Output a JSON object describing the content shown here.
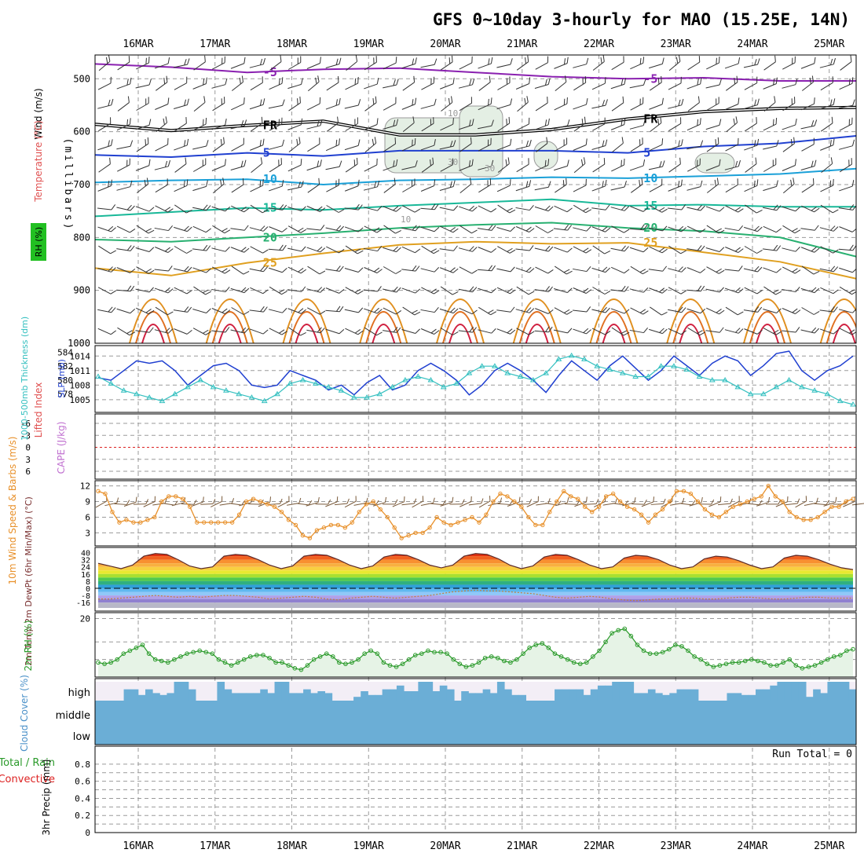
{
  "title": "GFS 0~10day 3-hourly for MAO (15.25E, 14N)",
  "dates": [
    "16MAR",
    "17MAR",
    "18MAR",
    "19MAR",
    "20MAR",
    "21MAR",
    "22MAR",
    "23MAR",
    "24MAR",
    "25MAR"
  ],
  "colors": {
    "frame": "#000000",
    "grid": "#9a9a9a",
    "slp": "#1f3fd0",
    "thickness": "#35c0c0",
    "wind": "#e8902a",
    "barb": "#7a5a3a",
    "rh2m_line": "#2a9a2a",
    "rh2m_fill": "#e6f3e6",
    "cloud": "#6baed6",
    "cloud_bg": "#f3eef6",
    "li_zero": "#dd2222"
  },
  "chart_data": [
    {
      "panel": "upper_air",
      "type": "contour",
      "ylabel": "(millibars)",
      "side_labels": [
        "Wind (m/s)",
        "Temperature (°C)",
        "RH (%)"
      ],
      "y_ticks": [
        500,
        600,
        700,
        800,
        900,
        1000
      ],
      "ylim": [
        1000,
        455
      ],
      "temperature_isotherms": [
        {
          "label": "-5",
          "color": "#8a20b0",
          "p_mb": [
            472,
            478,
            488,
            482,
            480,
            488,
            496,
            500,
            498,
            504,
            504
          ]
        },
        {
          "label": "FR",
          "color": "#222222",
          "p_mb": [
            586,
            598,
            588,
            580,
            606,
            606,
            596,
            576,
            562,
            556,
            554
          ]
        },
        {
          "label": "5",
          "color": "#2040d0",
          "p_mb": [
            644,
            648,
            640,
            646,
            636,
            636,
            636,
            640,
            628,
            622,
            608
          ]
        },
        {
          "label": "10",
          "color": "#1aa0d8",
          "p_mb": [
            696,
            692,
            690,
            700,
            692,
            690,
            686,
            688,
            684,
            680,
            670
          ]
        },
        {
          "label": "15",
          "color": "#18b898",
          "p_mb": [
            760,
            752,
            744,
            748,
            740,
            734,
            728,
            740,
            738,
            742,
            742
          ]
        },
        {
          "label": "20",
          "color": "#28b070",
          "p_mb": [
            804,
            808,
            800,
            792,
            782,
            776,
            772,
            782,
            788,
            800,
            836
          ]
        },
        {
          "label": "25",
          "color": "#e0a020",
          "p_mb": [
            858,
            872,
            848,
            830,
            814,
            808,
            812,
            810,
            828,
            846,
            878
          ]
        }
      ],
      "rh_contours": [
        "10",
        "30",
        "30",
        "10"
      ]
    },
    {
      "panel": "slp_thickness",
      "type": "line",
      "y_left_label": "1000-500mb Thickness (dm)",
      "y_right_label": "SLP (mb)",
      "y_left_ticks": [
        578,
        580,
        582,
        584
      ],
      "y_right_ticks": [
        1005,
        1008,
        1011,
        1014
      ],
      "series": [
        {
          "name": "SLP (mb)",
          "axis": "right",
          "values": [
            1009.5,
            1009,
            1011,
            1013,
            1012.5,
            1013,
            1011,
            1008,
            1010,
            1012,
            1012.5,
            1011,
            1008,
            1007.5,
            1008,
            1011,
            1010,
            1009,
            1007,
            1008,
            1006,
            1008.5,
            1010,
            1007,
            1008,
            1011,
            1012.5,
            1011,
            1009,
            1006,
            1008,
            1011,
            1012.5,
            1011,
            1009,
            1006.5,
            1010,
            1013,
            1011,
            1009,
            1012,
            1014,
            1011.5,
            1009,
            1011,
            1014,
            1012,
            1010,
            1012.5,
            1014,
            1013,
            1010,
            1012,
            1014.5,
            1015,
            1011,
            1009,
            1011,
            1012,
            1014
          ]
        },
        {
          "name": "Thickness (dm)",
          "axis": "left",
          "values": [
            580.5,
            579.5,
            578.5,
            578,
            577.5,
            577,
            578,
            579,
            580,
            579,
            578.5,
            578,
            577.5,
            577,
            578,
            579.5,
            580,
            579.5,
            579,
            578.5,
            577.5,
            577.5,
            578,
            579,
            580,
            580.5,
            580,
            579,
            579.5,
            581,
            582,
            582,
            581,
            580.5,
            580,
            581,
            583,
            583.5,
            583,
            582,
            581.5,
            581,
            580.5,
            580.5,
            582,
            582,
            581.5,
            580.5,
            580,
            580,
            579,
            578,
            578,
            579,
            580,
            579,
            578.5,
            578,
            577,
            576.5
          ]
        }
      ]
    },
    {
      "panel": "lifted_index_cape",
      "type": "line",
      "ylabel_left": "Lifted Index",
      "ylabel_right": "CAPE (J/kg)",
      "y_ticks": [
        "-6",
        "-3",
        "0",
        "3",
        "6"
      ],
      "ylim": [
        -6,
        6
      ],
      "zero_line": 0
    },
    {
      "panel": "wind_10m",
      "type": "line",
      "ylabel": "10m Wind Speed & Barbs (m/s)",
      "y_ticks": [
        3,
        6,
        9,
        12
      ],
      "ylim": [
        0.5,
        13
      ],
      "values": [
        11,
        10.5,
        7,
        5,
        5.5,
        5,
        5,
        5.5,
        6,
        9,
        10,
        10,
        9.5,
        8,
        5,
        5,
        5,
        5,
        5,
        5,
        6.5,
        9,
        9.5,
        9,
        8.5,
        8,
        7,
        5.5,
        4.5,
        2.5,
        2,
        3.5,
        4,
        4.5,
        4.5,
        4,
        5,
        7,
        8.5,
        9,
        7.5,
        6,
        4,
        2,
        2.5,
        3,
        3,
        4,
        6,
        5,
        4.5,
        5,
        5.5,
        6,
        5,
        6.5,
        9,
        10.5,
        10,
        9,
        8,
        6,
        4.5,
        4.5,
        7,
        9,
        11,
        10,
        9.5,
        8,
        7,
        8,
        10,
        10.5,
        9,
        8,
        7.5,
        6.5,
        5,
        6.5,
        7.5,
        9,
        11,
        11,
        10.5,
        9,
        7.5,
        6.5,
        6,
        7,
        8,
        8.5,
        9,
        9.5,
        10,
        12,
        10,
        9,
        7,
        6,
        5.5,
        5.5,
        6,
        7,
        8,
        8,
        9,
        9.5
      ]
    },
    {
      "panel": "temp_2m",
      "type": "area",
      "ylabel": "2m Temp 2m DewPt (6hr Min/Max) (°C)",
      "y_ticks": [
        "40",
        "32",
        "24",
        "16",
        "8",
        "0",
        "-8",
        "-16"
      ],
      "ylim": [
        -22,
        44
      ],
      "temperature_c": [
        28,
        25,
        22,
        26,
        36,
        39,
        38,
        32,
        25,
        22,
        24,
        36,
        38,
        37,
        32,
        26,
        22,
        25,
        36,
        38,
        37,
        32,
        26,
        22,
        25,
        35,
        38,
        37,
        32,
        26,
        23,
        26,
        36,
        39,
        38,
        33,
        26,
        22,
        25,
        35,
        38,
        37,
        32,
        26,
        22,
        24,
        34,
        37,
        36,
        32,
        26,
        22,
        24,
        33,
        36,
        35,
        31,
        26,
        22,
        24,
        34,
        37,
        36,
        32,
        27,
        23,
        21
      ],
      "dewpoint_c": [
        -12,
        -12,
        -11,
        -10,
        -9,
        -8,
        -9,
        -10,
        -9,
        -10,
        -9,
        -8,
        -8,
        -9,
        -10,
        -12,
        -11,
        -10,
        -9,
        -10,
        -12,
        -13,
        -11,
        -10,
        -9,
        -10,
        -11,
        -10,
        -9,
        -8,
        -6,
        -4,
        -3,
        -2,
        -3,
        -3,
        -4,
        -5,
        -6,
        -8,
        -10,
        -11,
        -10,
        -9,
        -10,
        -12,
        -13,
        -14,
        -13,
        -12,
        -12,
        -11,
        -11,
        -12,
        -12,
        -11,
        -10,
        -10,
        -11,
        -12,
        -12,
        -11,
        -10,
        -10,
        -11,
        -11,
        -11
      ]
    },
    {
      "panel": "rh_2m",
      "type": "area",
      "ylabel": "2m RH (%)",
      "y_ticks": [
        20
      ],
      "ylim": [
        0,
        22
      ],
      "values": [
        5,
        4.5,
        5,
        6,
        8,
        9,
        10,
        11,
        8,
        6,
        5.5,
        5,
        6,
        7,
        8,
        8.5,
        9,
        8.5,
        8,
        6,
        5,
        4,
        5,
        6,
        7,
        7.5,
        7.5,
        6.5,
        5,
        5,
        4,
        3,
        2.5,
        4,
        6,
        7,
        8,
        7,
        5,
        4.5,
        5,
        6,
        8,
        9,
        8,
        5,
        4,
        3.5,
        4.5,
        6,
        7.5,
        8,
        9,
        8.5,
        8.5,
        8,
        6,
        4.5,
        3.5,
        4,
        5,
        6.5,
        7,
        6.5,
        5.5,
        5,
        6,
        8,
        10,
        11,
        11.5,
        10,
        8,
        7,
        6,
        5,
        4.5,
        5,
        7,
        9,
        12,
        15,
        16,
        16.5,
        14,
        11,
        9,
        8,
        8,
        8.5,
        9.5,
        11,
        10.5,
        9,
        7,
        6,
        4.5,
        3.5,
        4,
        4.5,
        5,
        5,
        5.5,
        6,
        5.5,
        5,
        4,
        4,
        5,
        6,
        4,
        3,
        3.5,
        4,
        5,
        6,
        7,
        7.5,
        9,
        9.5
      ]
    },
    {
      "panel": "cloud_cover",
      "type": "heatmap",
      "ylabel": "Cloud Cover (%)",
      "levels": [
        "high",
        "middle",
        "low"
      ],
      "high_fraction": [
        0,
        0,
        0,
        0,
        0.6,
        0.6,
        0.3,
        0.6,
        0.4,
        0.3,
        0.4,
        1,
        1,
        0.6,
        0,
        0,
        0,
        1,
        0.6,
        0.4,
        0.4,
        0.4,
        0.4,
        0.6,
        0.4,
        1,
        1,
        0.4,
        0.4,
        0.6,
        0.4,
        0.5,
        0.4,
        0,
        0,
        0,
        0.2,
        0.5,
        0.3,
        0.3,
        0.6,
        0.6,
        0.8,
        0.5,
        0.5,
        1,
        1,
        0.5,
        0.8,
        0.6,
        0,
        0.5,
        0.4,
        0.4,
        0.6,
        0.4,
        1,
        0.6,
        0.3,
        0.3,
        0,
        0,
        0,
        0,
        0.6,
        0.6,
        0.6,
        0.6,
        0.3,
        0.6,
        0.8,
        0.8,
        1,
        1,
        1,
        0.4,
        0.4,
        0.6,
        0.4,
        0.3,
        0.4,
        0.6,
        0.6,
        0.6,
        0,
        0,
        0,
        0,
        0.4,
        0.4,
        0.3,
        0.3,
        0.6,
        0.6,
        0.8,
        1,
        1,
        1,
        1,
        0.2,
        0.6,
        0.4,
        1,
        1,
        1,
        0.6
      ]
    },
    {
      "panel": "precip_3hr",
      "type": "bar",
      "ylabel_top": "Total / Rain",
      "ylabel_mid": "Convective",
      "ylabel": "3hr Precip (mm)",
      "y_ticks": [
        "0",
        "0.2",
        "0.4",
        "0.6",
        "0.8"
      ],
      "ylim": [
        0,
        0.9
      ],
      "values": [],
      "run_total_label": "Run Total = 0"
    }
  ]
}
